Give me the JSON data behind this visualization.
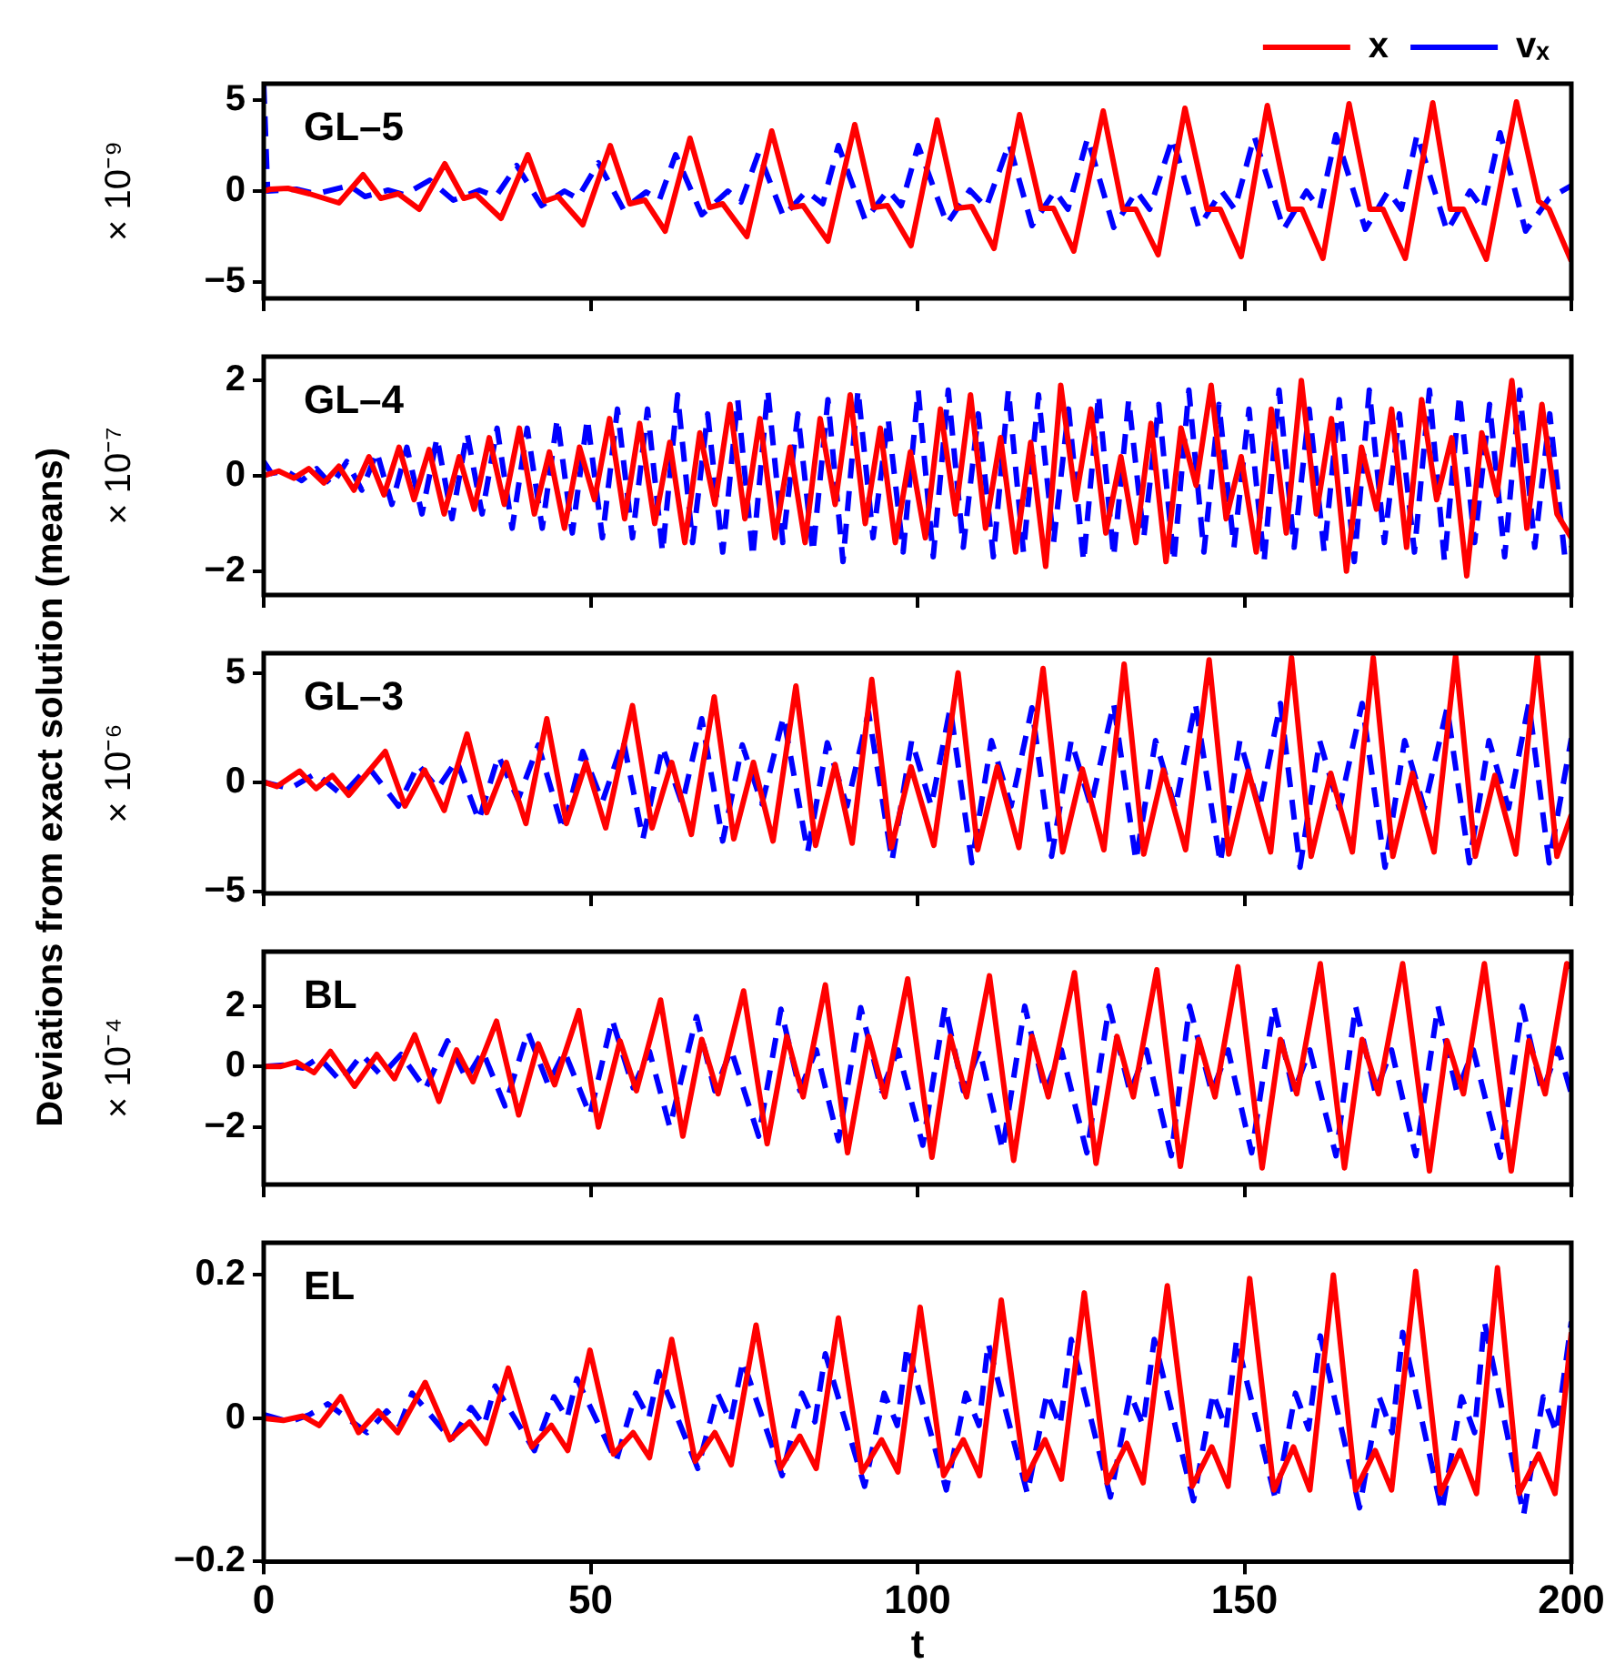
{
  "chart_data": [
    {
      "type": "line",
      "annotations": [
        "GL–5"
      ],
      "ylabel": "× 10⁻⁹",
      "xlim": [
        0,
        200
      ],
      "xticks": [
        0,
        50,
        100,
        150,
        200
      ],
      "ylim": [
        -5.9,
        5.9
      ],
      "yticks": [
        -5,
        0,
        5
      ],
      "tick_labels": "y",
      "legend": "top right",
      "marker": "none",
      "line_style": "solid",
      "series": [
        {
          "name": "x",
          "color": "#ff0000",
          "x": [
            0,
            1,
            3.7,
            7,
            11.5,
            15.2,
            17.9,
            20.6,
            23.8,
            27.7,
            30.6,
            32.5,
            36.3,
            40.4,
            43,
            45,
            48.8,
            53,
            56,
            58.3,
            61.4,
            65.2,
            68.2,
            70.2,
            73.9,
            77.7,
            80.8,
            82.5,
            86.3,
            90.4,
            93.3,
            95.4,
            99,
            103,
            106,
            108.3,
            111.7,
            115.6,
            118.9,
            120.8,
            123.9,
            128.4,
            131.4,
            133.4,
            136.8,
            140.9,
            144.3,
            146.3,
            149.5,
            153.5,
            156.8,
            158.8,
            162,
            166,
            169.2,
            171.2,
            174.6,
            178.8,
            181.5,
            183.5,
            187,
            191.6,
            195,
            196.6,
            200
          ],
          "values": [
            0,
            0.1,
            0.15,
            -0.15,
            -0.65,
            0.9,
            -0.4,
            -0.15,
            -1.0,
            1.5,
            -0.4,
            -0.2,
            -1.5,
            2.0,
            -0.55,
            -0.3,
            -1.85,
            2.5,
            -0.7,
            -0.5,
            -2.2,
            2.9,
            -0.9,
            -0.7,
            -2.5,
            3.3,
            -0.9,
            -0.8,
            -2.75,
            3.65,
            -0.9,
            -0.8,
            -3.0,
            3.9,
            -0.95,
            -0.85,
            -3.15,
            4.2,
            -0.95,
            -0.95,
            -3.3,
            4.4,
            -1.0,
            -1.0,
            -3.5,
            4.55,
            -1.0,
            -1.0,
            -3.6,
            4.7,
            -1.0,
            -1.0,
            -3.7,
            4.8,
            -1.0,
            -1.0,
            -3.7,
            4.85,
            -1.0,
            -1.0,
            -3.75,
            4.9,
            -0.55,
            -1.0,
            -3.85
          ]
        },
        {
          "name": "vₓ",
          "color": "#0000ff",
          "line_style": "dashed",
          "x": [
            0,
            0.6,
            5,
            8,
            13.1,
            15.5,
            19,
            21.5,
            25.4,
            29,
            33,
            35.5,
            38.7,
            42.5,
            46,
            48,
            51.2,
            55,
            58.5,
            60.5,
            63,
            67,
            71,
            73,
            75.7,
            79.5,
            83,
            85.5,
            87.9,
            92,
            95.5,
            97.5,
            100.1,
            104.5,
            108,
            110.5,
            114,
            117.5,
            121,
            123,
            126,
            130,
            133.5,
            135.5,
            139,
            143,
            146.5,
            148.5,
            151.5,
            156,
            159.5,
            161.5,
            164,
            168.5,
            172,
            174,
            176.4,
            181,
            184.5,
            186.5,
            189.1,
            193,
            196.6,
            200
          ],
          "values": [
            5.9,
            0,
            0.1,
            -0.15,
            0.3,
            -0.3,
            0.05,
            -0.2,
            0.6,
            -0.5,
            0.05,
            -0.3,
            1.4,
            -0.8,
            0,
            -0.4,
            1.55,
            -1.0,
            -0.05,
            -0.5,
            2.0,
            -1.3,
            0,
            -0.6,
            2.1,
            -1.4,
            0,
            -0.7,
            2.5,
            -1.6,
            0.05,
            -0.8,
            2.5,
            -1.8,
            0.05,
            -0.9,
            2.6,
            -1.9,
            0,
            -1.0,
            2.9,
            -2.0,
            0,
            -1.0,
            2.9,
            -2.0,
            0,
            -1.0,
            3.0,
            -2.1,
            0,
            -1.0,
            3.1,
            -2.1,
            0,
            -1.0,
            3.1,
            -2.2,
            0,
            -1.0,
            3.2,
            -2.2,
            -0.4,
            0.3
          ]
        }
      ]
    },
    {
      "type": "line",
      "annotations": [
        "GL–4"
      ],
      "ylabel": "× 10⁻⁷",
      "xlim": [
        0,
        200
      ],
      "xticks": [
        0,
        50,
        100,
        150,
        200
      ],
      "ylim": [
        -2.5,
        2.5
      ],
      "yticks": [
        -2,
        0,
        2
      ],
      "tick_labels": "y",
      "marker": "none",
      "line_style": "solid",
      "series": [
        {
          "color": "#ff0000",
          "x": [
            0,
            2.3,
            4.6,
            6.9,
            9.2,
            11.5,
            13.8,
            16.1,
            18.4,
            20.7,
            23,
            25.3,
            27.6,
            29.9,
            32.2,
            34.5,
            36.8,
            39.1,
            41.4,
            43.7,
            46,
            48.3,
            50.6,
            52.9,
            55.2,
            57.5,
            59.8,
            62.1,
            64.4,
            66.7,
            69,
            71.3,
            73.6,
            75.9,
            78.2,
            80.5,
            82.8,
            85.1,
            87.4,
            89.7,
            92,
            94.3,
            96.6,
            98.9,
            101.2,
            103.5,
            105.8,
            108.1,
            110.4,
            112.7,
            115,
            117.3,
            119.6,
            121.9,
            124.2,
            126.5,
            128.8,
            131.1,
            133.4,
            135.7,
            138,
            140.3,
            142.6,
            144.9,
            147.2,
            149.5,
            151.8,
            154.1,
            156.4,
            158.7,
            161,
            163.3,
            165.6,
            167.9,
            170.2,
            172.5,
            174.8,
            177.1,
            179.4,
            181.7,
            184,
            186.3,
            188.6,
            190.9,
            193.2,
            195.5,
            197.8,
            200
          ],
          "values": [
            0,
            0.1,
            -0.05,
            0.15,
            -0.15,
            0.2,
            -0.3,
            0.4,
            -0.4,
            0.6,
            -0.5,
            0.55,
            -0.8,
            0.4,
            -0.7,
            0.8,
            -0.6,
            1.0,
            -0.8,
            0.5,
            -1.1,
            0.6,
            -0.5,
            1.2,
            -0.9,
            1.1,
            -1.0,
            0.7,
            -1.4,
            0.9,
            -0.6,
            1.5,
            -0.9,
            1.2,
            -1.3,
            0.6,
            -1.4,
            1.2,
            -0.6,
            1.7,
            -1.0,
            1.0,
            -1.4,
            0.5,
            -1.3,
            1.4,
            -0.8,
            1.7,
            -1.1,
            0.8,
            -1.6,
            0.7,
            -1.9,
            1.9,
            -0.5,
            1.4,
            -1.2,
            0.4,
            -1.4,
            1.1,
            -1.8,
            1.0,
            -0.2,
            1.9,
            -0.9,
            0.4,
            -1.6,
            1.4,
            -1.2,
            2.0,
            -0.8,
            1.2,
            -2.0,
            0.6,
            -0.7,
            1.4,
            -1.5,
            1.6,
            -0.5,
            0.8,
            -2.1,
            0.9,
            -0.4,
            2.0,
            -1.1,
            1.5,
            -0.8,
            -1.3
          ]
        },
        {
          "color": "#0000ff",
          "line_style": "dashed",
          "x": [
            0,
            1.2,
            3.5,
            5.8,
            8.1,
            10.4,
            12.7,
            15,
            17.3,
            19.6,
            21.9,
            24.2,
            26.5,
            28.8,
            31.1,
            33.4,
            35.7,
            38,
            40.3,
            42.6,
            44.9,
            47.2,
            49.5,
            51.8,
            54.1,
            56.4,
            58.7,
            61,
            63.3,
            65.6,
            67.9,
            70.2,
            72.5,
            74.8,
            77.1,
            79.4,
            81.7,
            84,
            86.3,
            88.6,
            90.9,
            93.2,
            95.5,
            97.8,
            100.1,
            102.4,
            104.7,
            107,
            109.3,
            111.6,
            113.9,
            116.2,
            118.5,
            120.8,
            123.1,
            125.4,
            127.7,
            130,
            132.3,
            134.6,
            136.9,
            139.2,
            141.5,
            143.8,
            146.1,
            148.4,
            150.7,
            153,
            155.3,
            157.6,
            159.9,
            162.2,
            164.5,
            166.8,
            169.1,
            171.4,
            173.7,
            176,
            178.3,
            180.6,
            182.9,
            185.2,
            187.5,
            189.8,
            192.1,
            194.4,
            196.7,
            199,
            200
          ],
          "values": [
            0.3,
            0.05,
            0.1,
            -0.1,
            0.15,
            -0.2,
            0.3,
            -0.3,
            0.5,
            -0.6,
            0.6,
            -0.8,
            0.8,
            -0.9,
            0.9,
            -0.8,
            1.0,
            -1.1,
            1.0,
            -1.1,
            1.2,
            -1.2,
            1.2,
            -1.3,
            1.4,
            -1.3,
            1.4,
            -1.6,
            1.7,
            -1.4,
            1.3,
            -1.6,
            1.6,
            -1.7,
            1.8,
            -1.4,
            1.3,
            -1.6,
            1.6,
            -1.8,
            1.8,
            -1.3,
            1.2,
            -1.6,
            1.8,
            -1.7,
            1.8,
            -1.5,
            1.3,
            -1.7,
            1.8,
            -1.6,
            1.7,
            -1.4,
            1.4,
            -1.8,
            1.7,
            -1.7,
            1.6,
            -1.3,
            1.5,
            -1.8,
            1.8,
            -1.6,
            1.5,
            -1.5,
            1.4,
            -1.8,
            1.8,
            -1.5,
            1.4,
            -1.6,
            1.6,
            -1.8,
            1.8,
            -1.4,
            1.3,
            -1.6,
            1.8,
            -1.8,
            1.7,
            -1.4,
            1.5,
            -1.7,
            1.8,
            -1.5,
            1.3,
            -1.7,
            -1.5
          ]
        }
      ]
    },
    {
      "type": "line",
      "annotations": [
        "GL–3"
      ],
      "ylabel": "× 10⁻⁶",
      "xlim": [
        0,
        200
      ],
      "xticks": [
        0,
        50,
        100,
        150,
        200
      ],
      "ylim": [
        -5.1,
        5.9
      ],
      "yticks": [
        -5,
        0,
        5
      ],
      "tick_labels": "y",
      "marker": "none",
      "line_style": "solid",
      "series": [
        {
          "color": "#ff0000",
          "x": [
            0,
            2,
            5.5,
            8,
            10.5,
            13,
            18.6,
            21.6,
            24.6,
            27.6,
            31.1,
            34.1,
            37.1,
            40.1,
            43.3,
            46.3,
            49.3,
            52.3,
            56.4,
            59.4,
            62.4,
            65.4,
            68.9,
            71.9,
            74.9,
            77.9,
            81.4,
            84.4,
            87.4,
            90,
            93,
            96,
            99,
            102.5,
            106.2,
            109.2,
            112.2,
            115.5,
            119.2,
            122.2,
            125.2,
            128.5,
            131.6,
            134.6,
            137.6,
            141,
            144.6,
            147.6,
            150.6,
            154,
            157.2,
            160.2,
            163.2,
            166.5,
            169.7,
            172.7,
            175.7,
            179,
            182.3,
            185.3,
            188.3,
            191.5,
            194.8,
            197.8,
            200
          ],
          "values": [
            0,
            -0.2,
            0.5,
            -0.3,
            0.3,
            -0.6,
            1.4,
            -1.1,
            0.55,
            -1.3,
            2.2,
            -1.4,
            0.9,
            -1.9,
            2.9,
            -1.9,
            0.9,
            -2.1,
            3.5,
            -2.1,
            0.9,
            -2.4,
            3.9,
            -2.6,
            0.9,
            -2.7,
            4.4,
            -2.9,
            0.8,
            -2.8,
            4.7,
            -3.0,
            0.7,
            -2.9,
            5.0,
            -3.1,
            0.7,
            -3.0,
            5.2,
            -3.2,
            0.6,
            -3.1,
            5.4,
            -3.3,
            0.55,
            -3.1,
            5.6,
            -3.3,
            0.5,
            -3.2,
            5.7,
            -3.4,
            0.4,
            -3.2,
            5.7,
            -3.4,
            0.4,
            -3.2,
            5.8,
            -3.4,
            0.3,
            -3.3,
            5.8,
            -3.4,
            -1.5
          ]
        },
        {
          "color": "#0000ff",
          "line_style": "dashed",
          "x": [
            0,
            4,
            8,
            12,
            16,
            20.6,
            23.6,
            26.6,
            29.5,
            32.9,
            35.9,
            38.9,
            42,
            45.8,
            48.8,
            51.8,
            55,
            58,
            61,
            64,
            67,
            70.2,
            73.2,
            76.2,
            79.5,
            83.2,
            86.2,
            89.2,
            92.5,
            96.1,
            99.1,
            102.1,
            105,
            108.3,
            111.3,
            114.3,
            117.5,
            120.5,
            123.5,
            126.5,
            130,
            133.4,
            136.4,
            139.4,
            142.5,
            146.3,
            149.3,
            152.3,
            155.5,
            158.5,
            161.5,
            164.5,
            168,
            171.5,
            174.5,
            177.5,
            181,
            184.4,
            187.4,
            190.4,
            193.5,
            196.6,
            200
          ],
          "values": [
            0,
            -0.3,
            0.4,
            -0.6,
            0.7,
            -1.1,
            0.8,
            -0.3,
            1.0,
            -1.75,
            1.2,
            -0.8,
            1.7,
            -2.2,
            1.4,
            -0.9,
            1.9,
            -2.6,
            1.6,
            -1.0,
            2.9,
            -2.7,
            1.7,
            -1.0,
            3.0,
            -3.2,
            1.8,
            -1.1,
            3.2,
            -3.6,
            1.9,
            -1.1,
            3.4,
            -3.7,
            1.9,
            -1.1,
            3.4,
            -3.4,
            1.9,
            -1.1,
            3.6,
            -3.6,
            1.9,
            -1.2,
            3.6,
            -3.7,
            1.9,
            -1.2,
            3.6,
            -3.9,
            1.9,
            -1.2,
            3.6,
            -3.9,
            1.9,
            -1.2,
            3.4,
            -3.7,
            1.9,
            -1.2,
            3.6,
            -3.7,
            2.0
          ]
        }
      ]
    },
    {
      "type": "line",
      "annotations": [
        "BL"
      ],
      "ylabel": "× 10⁻⁴",
      "xlim": [
        0,
        200
      ],
      "xticks": [
        0,
        50,
        100,
        150,
        200
      ],
      "ylim": [
        -3.9,
        3.8
      ],
      "yticks": [
        -2,
        0,
        2
      ],
      "tick_labels": "y",
      "marker": "none",
      "line_style": "solid",
      "series": [
        {
          "color": "#ff0000",
          "x": [
            0,
            2.5,
            5,
            7.7,
            10.2,
            13.9,
            17.3,
            20,
            23.1,
            26.8,
            29.5,
            32,
            35.6,
            39,
            42,
            44.5,
            48.2,
            51.2,
            54.5,
            57,
            60.7,
            64.1,
            67,
            69.5,
            73.4,
            77,
            80,
            82.5,
            85.9,
            89.3,
            92.5,
            95,
            98.5,
            102.2,
            105,
            107.5,
            111,
            114.7,
            117.5,
            120,
            124,
            127.3,
            130.5,
            133,
            136.6,
            140.2,
            143,
            145.5,
            149,
            152.7,
            155.5,
            158,
            161.6,
            165.3,
            168,
            170.5,
            174.2,
            178.3,
            181,
            183.5,
            186.7,
            190.8,
            193.5,
            196,
            199.3,
            200
          ],
          "values": [
            0,
            0,
            0.15,
            -0.2,
            0.5,
            -0.65,
            0.4,
            -0.4,
            1.05,
            -1.15,
            0.55,
            -0.5,
            1.5,
            -1.6,
            0.75,
            -0.6,
            1.85,
            -2.0,
            0.85,
            -0.8,
            2.2,
            -2.3,
            0.9,
            -0.9,
            2.5,
            -2.55,
            1.0,
            -1.0,
            2.7,
            -2.85,
            1.0,
            -1.0,
            2.9,
            -3.0,
            1.0,
            -1.0,
            3.0,
            -3.1,
            1.0,
            -1.0,
            3.1,
            -3.2,
            1.0,
            -1.0,
            3.2,
            -3.3,
            0.9,
            -1.0,
            3.3,
            -3.35,
            0.9,
            -0.9,
            3.4,
            -3.35,
            0.9,
            -0.9,
            3.4,
            -3.45,
            0.85,
            -0.9,
            3.4,
            -3.45,
            0.85,
            -0.9,
            3.4,
            3.3
          ]
        },
        {
          "color": "#0000ff",
          "line_style": "dashed",
          "x": [
            0,
            3,
            6,
            8.5,
            11.8,
            15,
            18,
            21,
            24.7,
            28.1,
            31,
            33.5,
            36.9,
            40.4,
            43.5,
            46,
            49.9,
            53.3,
            56.5,
            59,
            62.1,
            66.2,
            69,
            71.5,
            75.7,
            79.1,
            82,
            84.5,
            87.9,
            91.3,
            94.5,
            97,
            100.8,
            104.2,
            107,
            109.5,
            113,
            116.4,
            119.5,
            122,
            125.9,
            129.3,
            132.5,
            135,
            138.8,
            141.6,
            145,
            147.5,
            151.1,
            154.5,
            157.5,
            160,
            164,
            167,
            170,
            172.5,
            176.2,
            179.6,
            182.5,
            185,
            189.1,
            192.5,
            195.5,
            198,
            200
          ],
          "values": [
            0,
            0.05,
            -0.05,
            0.3,
            -0.5,
            0.4,
            -0.3,
            0.4,
            -0.75,
            0.85,
            -0.4,
            0.5,
            -1.3,
            1.15,
            -0.6,
            0.5,
            -1.6,
            1.55,
            -0.7,
            0.5,
            -2.0,
            1.65,
            -0.8,
            0.55,
            -2.3,
            1.9,
            -0.8,
            0.55,
            -2.45,
            1.95,
            -0.8,
            0.55,
            -2.6,
            2.0,
            -0.8,
            0.55,
            -2.75,
            2.0,
            -0.85,
            0.55,
            -2.85,
            2.0,
            -0.85,
            0.55,
            -2.95,
            2.0,
            -0.85,
            0.55,
            -2.85,
            2.0,
            -0.85,
            0.55,
            -2.95,
            2.0,
            -0.85,
            0.55,
            -2.95,
            2.0,
            -0.85,
            0.55,
            -3.0,
            2.0,
            -0.85,
            0.6,
            -0.9
          ]
        }
      ]
    },
    {
      "type": "line",
      "annotations": [
        "EL"
      ],
      "xlabel": "t",
      "ylabel": "Deviations from exact solution (means)",
      "xlim": [
        0,
        200
      ],
      "xticks": [
        0,
        50,
        100,
        150,
        200
      ],
      "ylim": [
        -0.2,
        0.245
      ],
      "yticks": [
        -0.2,
        0,
        0.2
      ],
      "marker": "none",
      "line_style": "solid",
      "series": [
        {
          "color": "#ff0000",
          "x": [
            0,
            3,
            6,
            8.5,
            11.8,
            14.5,
            17.5,
            20.5,
            24.7,
            28.5,
            31.5,
            34,
            37.4,
            41,
            44,
            46.5,
            49.9,
            53.5,
            56.5,
            59,
            62.4,
            66,
            69,
            71.5,
            75.3,
            79,
            82,
            84.5,
            87.9,
            91.5,
            94.5,
            97,
            100.4,
            104,
            107,
            109.5,
            112.8,
            116.5,
            119.5,
            122,
            125.5,
            129,
            132,
            134.5,
            138.2,
            142,
            145,
            147.5,
            150.8,
            154.5,
            157.5,
            160,
            163.6,
            167,
            170,
            172.5,
            176.2,
            180,
            183,
            185.5,
            188.7,
            192,
            195,
            197.5,
            200
          ],
          "values": [
            0,
            -0.003,
            0.003,
            -0.01,
            0.03,
            -0.02,
            0.01,
            -0.02,
            0.05,
            -0.03,
            -0.005,
            -0.035,
            0.07,
            -0.04,
            -0.01,
            -0.045,
            0.095,
            -0.05,
            -0.02,
            -0.055,
            0.11,
            -0.06,
            -0.02,
            -0.065,
            0.13,
            -0.07,
            -0.025,
            -0.07,
            0.14,
            -0.075,
            -0.03,
            -0.075,
            0.155,
            -0.08,
            -0.03,
            -0.08,
            0.165,
            -0.085,
            -0.03,
            -0.085,
            0.175,
            -0.09,
            -0.035,
            -0.09,
            0.185,
            -0.095,
            -0.04,
            -0.095,
            0.195,
            -0.1,
            -0.04,
            -0.1,
            0.2,
            -0.1,
            -0.045,
            -0.1,
            0.205,
            -0.105,
            -0.045,
            -0.105,
            0.21,
            -0.105,
            -0.05,
            -0.105,
            0.12
          ]
        },
        {
          "color": "#0000ff",
          "line_style": "dashed",
          "x": [
            0,
            4,
            7,
            9.8,
            15.8,
            18.8,
            20.8,
            22.7,
            28.7,
            31.7,
            33.7,
            35.4,
            41.4,
            44.4,
            46.4,
            47.9,
            53.9,
            56.9,
            58.9,
            60.4,
            66.4,
            69.4,
            71.4,
            73.3,
            79.3,
            82.3,
            84.3,
            85.9,
            91.9,
            94.9,
            96.9,
            98.4,
            104.4,
            107.4,
            109.4,
            110.8,
            116.8,
            119.8,
            121.8,
            123.5,
            129.5,
            132.5,
            134.5,
            136.2,
            142.2,
            145.2,
            147.2,
            148.8,
            154.8,
            157.8,
            159.8,
            161.6,
            167.6,
            170.6,
            172.6,
            174.2,
            180.2,
            183.2,
            185.2,
            186.7,
            192.7,
            195.7,
            197.7,
            200
          ],
          "values": [
            0.005,
            -0.005,
            0.005,
            0.02,
            -0.02,
            0.01,
            -0.01,
            0.035,
            -0.03,
            0.015,
            -0.01,
            0.045,
            -0.045,
            0.03,
            0,
            0.055,
            -0.06,
            0.035,
            0,
            0.065,
            -0.07,
            0.035,
            -0.005,
            0.08,
            -0.08,
            0.035,
            -0.005,
            0.09,
            -0.095,
            0.035,
            -0.01,
            0.1,
            -0.1,
            0.035,
            -0.01,
            0.105,
            -0.105,
            0.035,
            -0.01,
            0.11,
            -0.11,
            0.035,
            -0.01,
            0.11,
            -0.115,
            0.035,
            -0.015,
            0.11,
            -0.115,
            0.035,
            -0.015,
            0.115,
            -0.125,
            0.03,
            -0.02,
            0.12,
            -0.13,
            0.03,
            -0.02,
            0.135,
            -0.135,
            0.03,
            -0.02,
            0.135
          ]
        }
      ]
    }
  ]
}
